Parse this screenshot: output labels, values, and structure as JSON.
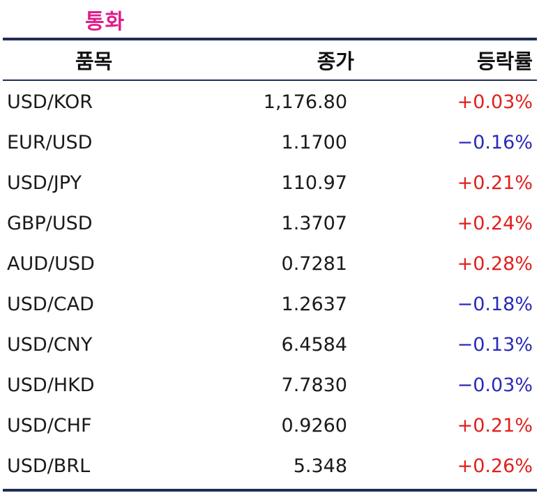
{
  "title": "통화",
  "headers": {
    "name": "품목",
    "price": "종가",
    "change": "등락률"
  },
  "rows": [
    {
      "name": "USD/KOR",
      "price": "1,176.80",
      "change": "+0.03%",
      "dir": "up"
    },
    {
      "name": "EUR/USD",
      "price": "1.1700",
      "change": "−0.16%",
      "dir": "down"
    },
    {
      "name": "USD/JPY",
      "price": "110.97",
      "change": "+0.21%",
      "dir": "up"
    },
    {
      "name": "GBP/USD",
      "price": "1.3707",
      "change": "+0.24%",
      "dir": "up"
    },
    {
      "name": "AUD/USD",
      "price": "0.7281",
      "change": "+0.28%",
      "dir": "up"
    },
    {
      "name": "USD/CAD",
      "price": "1.2637",
      "change": "−0.18%",
      "dir": "down"
    },
    {
      "name": "USD/CNY",
      "price": "6.4584",
      "change": "−0.13%",
      "dir": "down"
    },
    {
      "name": "USD/HKD",
      "price": "7.7830",
      "change": "−0.03%",
      "dir": "down"
    },
    {
      "name": "USD/CHF",
      "price": "0.9260",
      "change": "+0.21%",
      "dir": "up"
    },
    {
      "name": "USD/BRL",
      "price": "5.348",
      "change": "+0.26%",
      "dir": "up"
    }
  ],
  "colors": {
    "title": "#e01d8c",
    "rule": "#1f2d55",
    "up": "#e0201d",
    "down": "#2a2ab8"
  }
}
